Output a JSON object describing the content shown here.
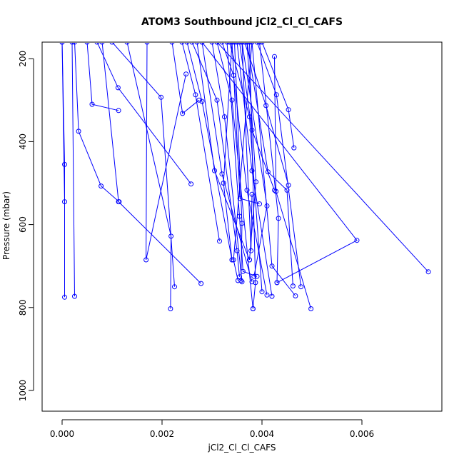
{
  "chart_data": {
    "type": "line",
    "title": "ATOM3 Southbound jCl2_Cl_Cl_CAFS",
    "xlabel": "jCl2_Cl_Cl_CAFS",
    "ylabel": "Pressure (mbar)",
    "xlim": [
      -0.0004,
      0.0076
    ],
    "ylim": [
      1050,
      160
    ],
    "y_reversed": true,
    "x_ticks": [
      0.0,
      0.002,
      0.004,
      0.006
    ],
    "x_tick_labels": [
      "0.000",
      "0.002",
      "0.004",
      "0.006"
    ],
    "y_ticks": [
      200,
      400,
      600,
      800,
      1000
    ],
    "y_tick_labels": [
      "200",
      "400",
      "600",
      "800",
      "1000"
    ],
    "grid": false,
    "legend": "none",
    "color": "#0000ff",
    "series": [
      {
        "x": [
          0.0,
          5e-05,
          5e-05
        ],
        "y": [
          160,
          455,
          775
        ]
      },
      {
        "x": [
          0.0,
          5e-05
        ],
        "y": [
          160,
          545
        ]
      },
      {
        "x": [
          0.0002,
          0.00025
        ],
        "y": [
          160,
          773
        ]
      },
      {
        "x": [
          0.00025,
          0.00033,
          0.00078,
          0.00114
        ],
        "y": [
          160,
          375,
          507,
          545
        ]
      },
      {
        "x": [
          0.0005,
          0.0006,
          0.00113
        ],
        "y": [
          160,
          310,
          325
        ]
      },
      {
        "x": [
          0.0007,
          0.00112,
          0.00258
        ],
        "y": [
          160,
          270,
          502
        ]
      },
      {
        "x": [
          0.0008,
          0.00113,
          0.00278
        ],
        "y": [
          160,
          545,
          742
        ]
      },
      {
        "x": [
          0.001,
          0.00198,
          0.00225
        ],
        "y": [
          160,
          293,
          750
        ]
      },
      {
        "x": [
          0.0013,
          0.00218,
          0.00217
        ],
        "y": [
          160,
          628,
          803
        ]
      },
      {
        "x": [
          0.0017,
          0.00168,
          0.00248
        ],
        "y": [
          160,
          685,
          237
        ]
      },
      {
        "x": [
          0.0022,
          0.00241,
          0.00274
        ],
        "y": [
          160,
          332,
          300
        ]
      },
      {
        "x": [
          0.0024,
          0.00267,
          0.00315
        ],
        "y": [
          160,
          287,
          640
        ]
      },
      {
        "x": [
          0.0025,
          0.0028,
          0.0034
        ],
        "y": [
          160,
          303,
          685
        ]
      },
      {
        "x": [
          0.0026,
          0.0031,
          0.0035,
          0.00355
        ],
        "y": [
          160,
          300,
          663,
          726
        ]
      },
      {
        "x": [
          0.0027,
          0.00305,
          0.00375
        ],
        "y": [
          160,
          470,
          685
        ]
      },
      {
        "x": [
          0.0028,
          0.0032,
          0.0038
        ],
        "y": [
          160,
          478,
          738
        ]
      },
      {
        "x": [
          0.003,
          0.00325,
          0.0036
        ],
        "y": [
          160,
          340,
          738
        ]
      },
      {
        "x": [
          0.0031,
          0.0034,
          0.00382
        ],
        "y": [
          160,
          300,
          803
        ]
      },
      {
        "x": [
          0.0032,
          0.00343,
          0.0037,
          0.0041
        ],
        "y": [
          160,
          240,
          517,
          770
        ]
      },
      {
        "x": [
          0.00335,
          0.00375,
          0.004
        ],
        "y": [
          160,
          340,
          762
        ]
      },
      {
        "x": [
          0.0034,
          0.00356,
          0.00395
        ],
        "y": [
          160,
          537,
          550
        ]
      },
      {
        "x": [
          0.0035,
          0.0038,
          0.0042
        ],
        "y": [
          160,
          470,
          773
        ]
      },
      {
        "x": [
          0.00355,
          0.0038,
          0.00425
        ],
        "y": [
          160,
          372,
          517
        ]
      },
      {
        "x": [
          0.00365,
          0.00408,
          0.00453
        ],
        "y": [
          160,
          313,
          505
        ]
      },
      {
        "x": [
          0.0037,
          0.00412,
          0.0045,
          0.00462
        ],
        "y": [
          160,
          473,
          517,
          748
        ]
      },
      {
        "x": [
          0.0038,
          0.0042,
          0.00467
        ],
        "y": [
          160,
          700,
          772
        ]
      },
      {
        "x": [
          0.0039,
          0.00429,
          0.00478
        ],
        "y": [
          160,
          287,
          750
        ]
      },
      {
        "x": [
          0.00425,
          0.00428,
          0.00498
        ],
        "y": [
          195,
          520,
          803
        ]
      },
      {
        "x": [
          0.004,
          0.00453,
          0.00464
        ],
        "y": [
          160,
          323,
          415
        ]
      },
      {
        "x": [
          0.0028,
          0.0059,
          0.0043
        ],
        "y": [
          160,
          638,
          740
        ]
      },
      {
        "x": [
          0.0031,
          0.00733
        ],
        "y": [
          160,
          714
        ]
      },
      {
        "x": [
          0.0033,
          0.00355,
          0.00362,
          0.0039
        ],
        "y": [
          160,
          580,
          713,
          725
        ]
      },
      {
        "x": [
          0.00345,
          0.0036,
          0.00358
        ],
        "y": [
          160,
          597,
          735
        ]
      },
      {
        "x": [
          0.0036,
          0.00378,
          0.0038
        ],
        "y": [
          160,
          663,
          527
        ]
      },
      {
        "x": [
          0.0037,
          0.00388,
          0.00375
        ],
        "y": [
          160,
          497,
          685
        ]
      },
      {
        "x": [
          0.00375,
          0.00387,
          0.00382
        ],
        "y": [
          160,
          740,
          803
        ]
      },
      {
        "x": [
          0.0036,
          0.0041,
          0.00384
        ],
        "y": [
          160,
          555,
          725
        ]
      },
      {
        "x": [
          0.0038,
          0.00343,
          0.00352
        ],
        "y": [
          160,
          685,
          735
        ]
      },
      {
        "x": [
          0.0034,
          0.00323,
          0.0034
        ],
        "y": [
          160,
          500,
          685
        ]
      },
      {
        "x": [
          0.00395,
          0.00433,
          0.0043
        ],
        "y": [
          160,
          585,
          740
        ]
      }
    ]
  }
}
